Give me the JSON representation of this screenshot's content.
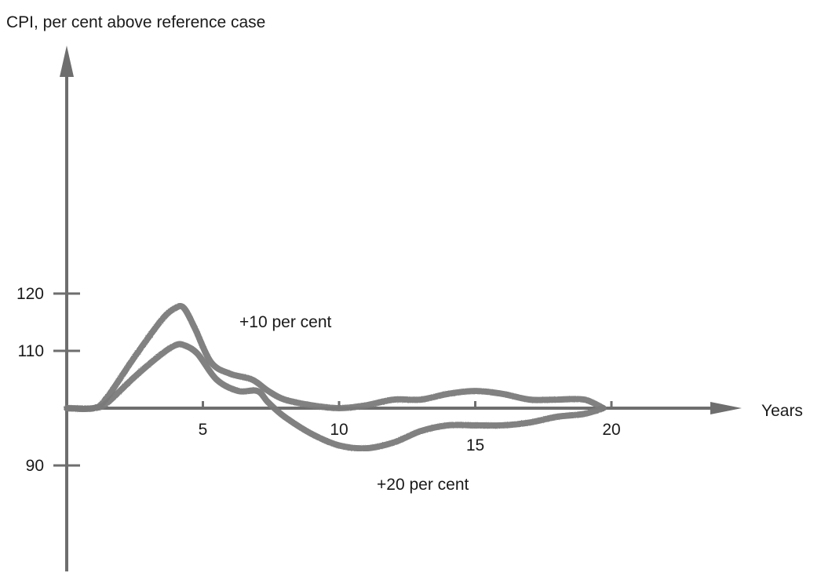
{
  "chart_data": {
    "type": "line",
    "title": "",
    "ylabel": "CPI, per cent above reference case",
    "xlabel": "Years",
    "xlim": [
      0,
      22
    ],
    "ylim": [
      80,
      160
    ],
    "baseline": 100,
    "x_ticks": [
      {
        "value": 5,
        "label": "5"
      },
      {
        "value": 10,
        "label": "10"
      },
      {
        "value": 15,
        "label": "15"
      },
      {
        "value": 20,
        "label": "20"
      }
    ],
    "y_ticks": [
      {
        "value": 120,
        "label": "120"
      },
      {
        "value": 110,
        "label": "110"
      },
      {
        "value": 90,
        "label": "90"
      }
    ],
    "grid": false,
    "legend": "none",
    "line_color": "#7a7a7a",
    "axis_color": "#6e6e6e",
    "series": [
      {
        "name": "+10 per cent",
        "x": [
          0,
          1.0,
          1.5,
          2.5,
          3.5,
          4.0,
          4.3,
          4.7,
          5.3,
          6.0,
          6.8,
          7.4,
          8.0,
          9.0,
          10.0,
          11.0,
          12.0,
          13.0,
          14.0,
          15.0,
          16.0,
          17.0,
          18.0,
          19.0,
          19.7
        ],
        "y": [
          100,
          100,
          102,
          109,
          115.5,
          117.5,
          117.5,
          114,
          108,
          106,
          105,
          103,
          101.5,
          100.5,
          100,
          100.5,
          101.5,
          101.5,
          102.5,
          103,
          102.5,
          101.5,
          101.5,
          101.5,
          100
        ]
      },
      {
        "name": "+20 per cent",
        "x": [
          0,
          1.0,
          1.5,
          2.5,
          3.5,
          4.0,
          4.3,
          4.8,
          5.5,
          6.3,
          7.0,
          7.4,
          8.0,
          9.0,
          10.0,
          11.0,
          12.0,
          13.0,
          14.0,
          15.0,
          16.0,
          17.0,
          18.0,
          19.0,
          19.7
        ],
        "y": [
          100,
          100,
          101,
          105.5,
          109.5,
          111,
          111,
          109.5,
          105,
          103,
          103,
          101,
          98.5,
          95.5,
          93.5,
          93,
          94,
          96,
          97,
          97,
          97,
          97.5,
          98.5,
          99,
          100
        ]
      }
    ]
  }
}
